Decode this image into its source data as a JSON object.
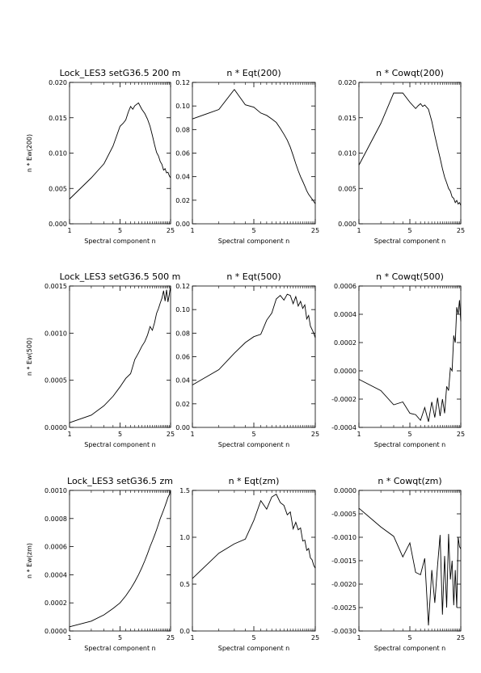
{
  "chart_data": [
    {
      "type": "line",
      "title": "Lock_LES3 setG36.5 200 m",
      "xlabel": "Spectral component n",
      "ylabel": "n * Ew(200)",
      "x_ticks": [
        "1",
        "5",
        "25"
      ],
      "y_ticks": [
        "0.000",
        "0.005",
        "0.010",
        "0.015",
        "0.020"
      ],
      "ylim": [
        0,
        0.02
      ],
      "x_scale": "log",
      "xlim": [
        1,
        25
      ],
      "x": [
        1,
        2,
        3,
        4,
        5,
        5.5,
        6,
        6.5,
        7,
        7.5,
        8,
        9,
        10,
        11,
        12,
        13,
        14,
        15,
        16,
        17,
        18,
        19,
        20,
        21,
        22,
        23,
        24,
        25
      ],
      "values": [
        0.0035,
        0.0065,
        0.0085,
        0.011,
        0.0138,
        0.0142,
        0.0147,
        0.0158,
        0.0166,
        0.0162,
        0.0167,
        0.0171,
        0.0162,
        0.0156,
        0.0148,
        0.0138,
        0.0125,
        0.0112,
        0.0101,
        0.0096,
        0.0088,
        0.0084,
        0.0076,
        0.0078,
        0.0072,
        0.0073,
        0.0068,
        0.0065
      ]
    },
    {
      "type": "line",
      "title": "n * Eqt(200)",
      "xlabel": "Spectral component n",
      "ylabel": "",
      "x_ticks": [
        "1",
        "5",
        "25"
      ],
      "y_ticks": [
        "0.00",
        "0.02",
        "0.04",
        "0.06",
        "0.08",
        "0.10",
        "0.12"
      ],
      "ylim": [
        0,
        0.12
      ],
      "x_scale": "log",
      "xlim": [
        1,
        25
      ],
      "x": [
        1,
        2,
        3,
        4,
        5,
        6,
        7,
        8,
        9,
        10,
        11,
        12,
        13,
        14,
        15,
        16,
        17,
        18,
        19,
        20,
        21,
        22,
        23,
        24,
        25
      ],
      "values": [
        0.089,
        0.097,
        0.114,
        0.101,
        0.099,
        0.094,
        0.092,
        0.089,
        0.086,
        0.081,
        0.076,
        0.071,
        0.065,
        0.058,
        0.051,
        0.045,
        0.04,
        0.036,
        0.032,
        0.028,
        0.025,
        0.023,
        0.021,
        0.019,
        0.017
      ]
    },
    {
      "type": "line",
      "title": "n * Cowqt(200)",
      "xlabel": "Spectral component n",
      "ylabel": "",
      "x_ticks": [
        "1",
        "5",
        "25"
      ],
      "y_ticks": [
        "0.000",
        "0.005",
        "0.010",
        "0.015",
        "0.020"
      ],
      "ylim": [
        0,
        0.02
      ],
      "x_scale": "log",
      "xlim": [
        1,
        25
      ],
      "x": [
        1,
        2,
        3,
        4,
        5,
        6,
        6.5,
        7,
        7.5,
        8,
        9,
        10,
        11,
        12,
        13,
        14,
        15,
        16,
        17,
        18,
        19,
        20,
        21,
        22,
        23,
        24,
        25
      ],
      "values": [
        0.0083,
        0.0142,
        0.0185,
        0.0185,
        0.0172,
        0.0163,
        0.0167,
        0.017,
        0.0166,
        0.0168,
        0.0162,
        0.0145,
        0.0125,
        0.0108,
        0.0093,
        0.0078,
        0.0066,
        0.0058,
        0.005,
        0.0046,
        0.0038,
        0.0036,
        0.003,
        0.0033,
        0.0028,
        0.003,
        0.0026
      ]
    },
    {
      "type": "line",
      "title": "Lock_LES3 setG36.5 500 m",
      "xlabel": "Spectral component n",
      "ylabel": "n * Ew(500)",
      "x_ticks": [
        "1",
        "5",
        "25"
      ],
      "y_ticks": [
        "0.0000",
        "0.0005",
        "0.0010",
        "0.0015"
      ],
      "ylim": [
        0,
        0.0015
      ],
      "x_scale": "log",
      "xlim": [
        1,
        25
      ],
      "x": [
        1,
        2,
        3,
        4,
        5,
        6,
        7,
        8,
        9,
        10,
        11,
        12,
        13,
        14,
        15,
        16,
        17,
        18,
        19,
        20,
        21,
        22,
        23,
        24,
        25
      ],
      "values": [
        5e-05,
        0.00013,
        0.00023,
        0.00033,
        0.00043,
        0.00052,
        0.00057,
        0.00072,
        0.00079,
        0.00086,
        0.00091,
        0.00098,
        0.00107,
        0.00103,
        0.00111,
        0.00121,
        0.00126,
        0.00132,
        0.00137,
        0.00145,
        0.00134,
        0.00146,
        0.00133,
        0.00141,
        0.0015
      ]
    },
    {
      "type": "line",
      "title": "n * Eqt(500)",
      "xlabel": "Spectral component n",
      "ylabel": "",
      "x_ticks": [
        "1",
        "5",
        "25"
      ],
      "y_ticks": [
        "0.00",
        "0.02",
        "0.04",
        "0.06",
        "0.08",
        "0.10",
        "0.12"
      ],
      "ylim": [
        0,
        0.12
      ],
      "x_scale": "log",
      "xlim": [
        1,
        25
      ],
      "x": [
        1,
        2,
        3,
        4,
        5,
        6,
        7,
        8,
        9,
        10,
        11,
        12,
        13,
        14,
        15,
        16,
        17,
        18,
        19,
        20,
        21,
        22,
        23,
        24,
        25
      ],
      "values": [
        0.036,
        0.049,
        0.063,
        0.072,
        0.077,
        0.079,
        0.091,
        0.097,
        0.109,
        0.112,
        0.108,
        0.113,
        0.112,
        0.105,
        0.111,
        0.103,
        0.107,
        0.101,
        0.104,
        0.092,
        0.095,
        0.086,
        0.083,
        0.08,
        0.076
      ]
    },
    {
      "type": "line",
      "title": "n * Cowqt(500)",
      "xlabel": "Spectral component n",
      "ylabel": "",
      "x_ticks": [
        "1",
        "5",
        "25"
      ],
      "y_ticks": [
        "-0.0004",
        "-0.0002",
        "0.0000",
        "0.0002",
        "0.0004",
        "0.0006"
      ],
      "ylim": [
        -0.0004,
        0.0006
      ],
      "x_scale": "log",
      "xlim": [
        1,
        25
      ],
      "x": [
        1,
        2,
        3,
        4,
        5,
        6,
        7,
        8,
        9,
        10,
        11,
        12,
        13,
        14,
        15,
        16,
        17,
        18,
        19,
        20,
        21,
        22,
        23,
        24,
        25
      ],
      "values": [
        -6e-05,
        -0.00014,
        -0.00024,
        -0.00022,
        -0.0003,
        -0.00031,
        -0.00035,
        -0.00026,
        -0.00036,
        -0.00022,
        -0.00033,
        -0.00019,
        -0.00032,
        -0.0002,
        -0.0003,
        -0.00011,
        -0.00014,
        2e-05,
        0.0,
        0.00025,
        0.0002,
        0.00045,
        0.0004,
        0.0005,
        0.00035
      ]
    },
    {
      "type": "line",
      "title": "Lock_LES3 setG36.5  zm",
      "xlabel": "Spectral component n",
      "ylabel": "n * Ew(zm)",
      "x_ticks": [
        "1",
        "5",
        "25"
      ],
      "y_ticks": [
        "0.0000",
        "0.0002",
        "0.0004",
        "0.0006",
        "0.0008",
        "0.0010"
      ],
      "ylim": [
        0,
        0.001
      ],
      "x_scale": "log",
      "xlim": [
        1,
        25
      ],
      "x": [
        1,
        2,
        3,
        4,
        5,
        6,
        7,
        8,
        9,
        10,
        11,
        12,
        13,
        14,
        15,
        16,
        17,
        18,
        19,
        20,
        21,
        22,
        23,
        24,
        25
      ],
      "values": [
        3e-05,
        7e-05,
        0.000115,
        0.00016,
        0.0002,
        0.00025,
        0.0003,
        0.00035,
        0.0004,
        0.00045,
        0.0005,
        0.00055,
        0.0006,
        0.00064,
        0.00068,
        0.00072,
        0.00076,
        0.0008,
        0.00083,
        0.00086,
        0.00089,
        0.00092,
        0.00095,
        0.00097,
        0.001
      ]
    },
    {
      "type": "line",
      "title": "n * Eqt(zm)",
      "xlabel": "Spectral component n",
      "ylabel": "",
      "x_ticks": [
        "1",
        "5",
        "25"
      ],
      "y_ticks": [
        "0.0",
        "0.5",
        "1.0",
        "1.5"
      ],
      "ylim": [
        0,
        1.5
      ],
      "x_scale": "log",
      "xlim": [
        1,
        25
      ],
      "x": [
        1,
        2,
        3,
        4,
        5,
        6,
        7,
        8,
        9,
        10,
        11,
        12,
        13,
        14,
        15,
        16,
        17,
        18,
        19,
        20,
        21,
        22,
        23,
        24,
        25
      ],
      "values": [
        0.56,
        0.83,
        0.93,
        0.98,
        1.18,
        1.39,
        1.3,
        1.43,
        1.46,
        1.37,
        1.34,
        1.24,
        1.27,
        1.09,
        1.16,
        1.08,
        1.1,
        0.96,
        0.97,
        0.86,
        0.88,
        0.78,
        0.76,
        0.7,
        0.67
      ]
    },
    {
      "type": "line",
      "title": "n * Cowqt(zm)",
      "xlabel": "Spectral component n",
      "ylabel": "",
      "x_ticks": [
        "1",
        "5",
        "25"
      ],
      "y_ticks": [
        "-0.0030",
        "-0.0025",
        "-0.0020",
        "-0.0015",
        "-0.0010",
        "-0.0005",
        "0.0000"
      ],
      "ylim": [
        -0.003,
        0
      ],
      "x_scale": "log",
      "xlim": [
        1,
        25
      ],
      "x": [
        1,
        2,
        3,
        4,
        5,
        6,
        7,
        8,
        9,
        10,
        11,
        12,
        13,
        14,
        15,
        16,
        17,
        18,
        19,
        20,
        21,
        22,
        23,
        24,
        25
      ],
      "values": [
        -0.00038,
        -0.00078,
        -0.00098,
        -0.00142,
        -0.00112,
        -0.00175,
        -0.0018,
        -0.00145,
        -0.00288,
        -0.0017,
        -0.0024,
        -0.0016,
        -0.00095,
        -0.00265,
        -0.0014,
        -0.0025,
        -0.00093,
        -0.0019,
        -0.0015,
        -0.00245,
        -0.0017,
        -0.0025,
        -0.001,
        -0.0012,
        -0.00125
      ]
    }
  ]
}
